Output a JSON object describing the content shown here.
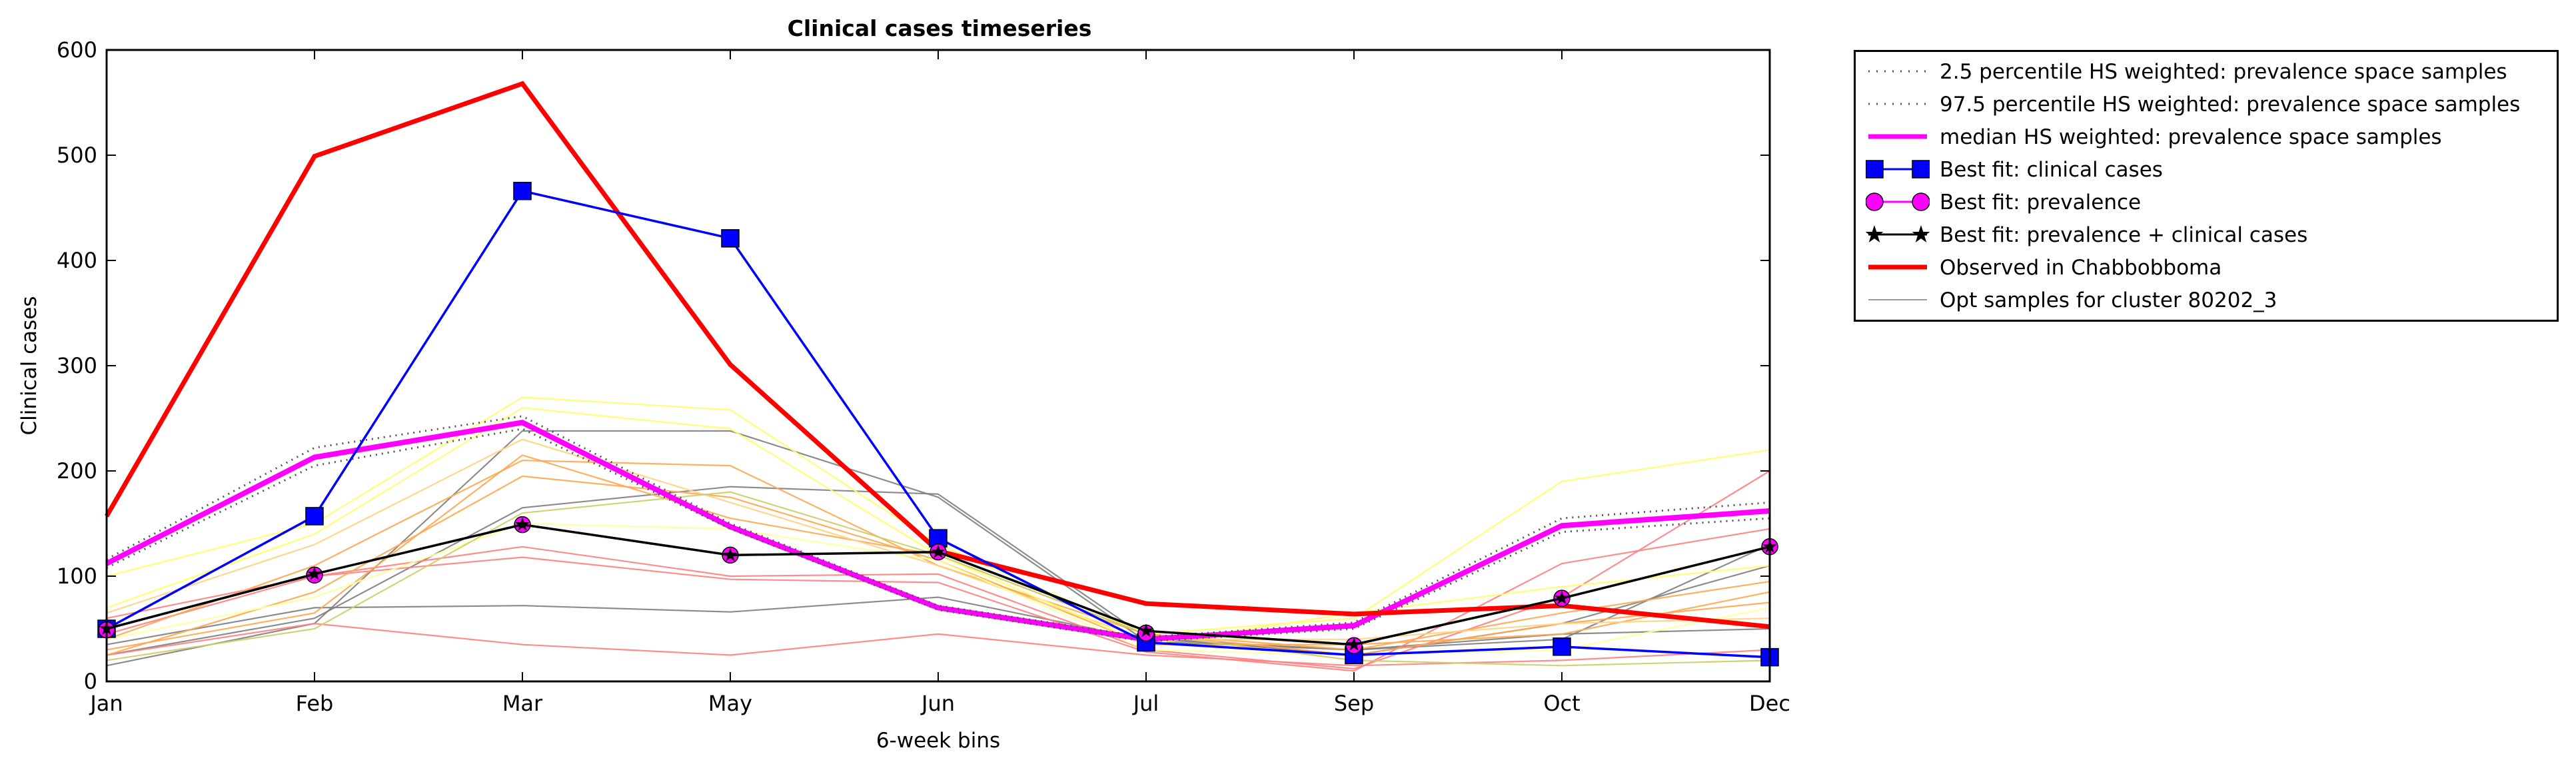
{
  "chart_data": {
    "type": "line",
    "title": "Clinical cases timeseries",
    "xlabel": "6-week bins",
    "ylabel": "Clinical cases",
    "categories": [
      "Jan",
      "Feb",
      "Mar",
      "May",
      "Jun",
      "Jul",
      "Sep",
      "Oct",
      "Dec"
    ],
    "yticks": [
      "0",
      "100",
      "200",
      "300",
      "400",
      "500",
      "600"
    ],
    "ylim": [
      0,
      600
    ],
    "grid": false,
    "legend_position": "outside-right",
    "series": [
      {
        "name": "2.5 percentile HS weighted: prevalence space samples",
        "color": "#555555",
        "style": "dotted",
        "values": [
          108,
          205,
          240,
          145,
          68,
          38,
          50,
          142,
          155
        ]
      },
      {
        "name": "97.5 percentile HS weighted: prevalence space samples",
        "color": "#555555",
        "style": "dotted",
        "values": [
          116,
          222,
          252,
          150,
          72,
          42,
          56,
          155,
          170
        ]
      },
      {
        "name": "median HS weighted: prevalence space samples",
        "color": "#ff00ff",
        "style": "solid",
        "values": [
          112,
          213,
          246,
          147,
          70,
          40,
          53,
          148,
          162
        ]
      },
      {
        "name": "Best fit: clinical cases",
        "color": "#0000ff",
        "marker": "square",
        "values": [
          50,
          157,
          466,
          421,
          136,
          37,
          25,
          33,
          23
        ]
      },
      {
        "name": "Best fit: prevalence",
        "color": "#ff00ff",
        "marker": "circle",
        "values": [
          49,
          101,
          149,
          120,
          123,
          46,
          34,
          79,
          128
        ]
      },
      {
        "name": "Best fit: prevalence + clinical cases",
        "color": "#000000",
        "marker": "star",
        "values": [
          50,
          102,
          149,
          120,
          123,
          48,
          35,
          79,
          128
        ]
      },
      {
        "name": "Observed in Chabbobboma",
        "color": "#ff0000",
        "style": "solid-thick",
        "values": [
          157,
          499,
          568,
          301,
          124,
          74,
          64,
          72,
          52
        ]
      },
      {
        "name": "Opt samples for cluster 80202_3",
        "color": "#999999",
        "style": "thin",
        "values": [
          15,
          55,
          238,
          238,
          175,
          38,
          30,
          40,
          130
        ]
      }
    ],
    "opt_samples": [
      {
        "color": "#808080",
        "values": [
          15,
          55,
          238,
          238,
          175,
          38,
          30,
          40,
          130
        ]
      },
      {
        "color": "#808080",
        "values": [
          35,
          70,
          72,
          66,
          80,
          40,
          30,
          45,
          50
        ]
      },
      {
        "color": "#808080",
        "values": [
          25,
          60,
          165,
          185,
          178,
          42,
          25,
          55,
          110
        ]
      },
      {
        "color": "#ff8080",
        "values": [
          25,
          55,
          35,
          25,
          45,
          25,
          15,
          20,
          30
        ]
      },
      {
        "color": "#ff8080",
        "values": [
          45,
          100,
          118,
          97,
          94,
          28,
          10,
          112,
          145
        ]
      },
      {
        "color": "#ff8080",
        "values": [
          60,
          100,
          128,
          100,
          102,
          30,
          12,
          80,
          200
        ]
      },
      {
        "color": "#ffa64d",
        "values": [
          30,
          65,
          215,
          155,
          120,
          45,
          25,
          55,
          75
        ]
      },
      {
        "color": "#ffa64d",
        "values": [
          40,
          110,
          210,
          205,
          110,
          45,
          30,
          65,
          95
        ]
      },
      {
        "color": "#ffa64d",
        "values": [
          25,
          85,
          195,
          175,
          115,
          35,
          35,
          45,
          85
        ]
      },
      {
        "color": "#ffd27f",
        "values": [
          65,
          130,
          230,
          170,
          110,
          40,
          40,
          55,
          60
        ]
      },
      {
        "color": "#ffff66",
        "values": [
          100,
          150,
          270,
          258,
          130,
          45,
          60,
          190,
          220
        ]
      },
      {
        "color": "#ffff66",
        "values": [
          70,
          140,
          260,
          240,
          120,
          35,
          65,
          90,
          110
        ]
      },
      {
        "color": "#ffff99",
        "values": [
          40,
          80,
          150,
          145,
          115,
          30,
          25,
          30,
          70
        ]
      },
      {
        "color": "#cccc66",
        "values": [
          20,
          50,
          160,
          180,
          120,
          45,
          20,
          15,
          20
        ]
      }
    ]
  }
}
